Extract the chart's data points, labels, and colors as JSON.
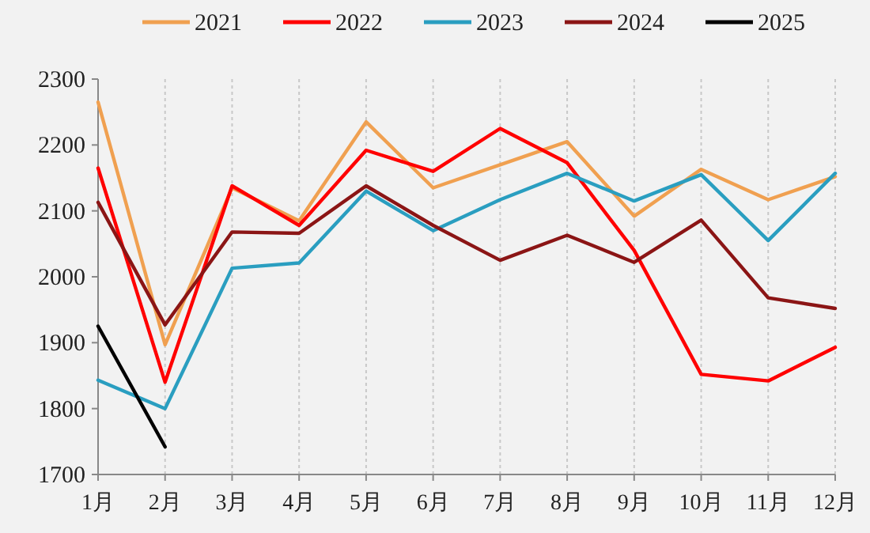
{
  "chart_data": {
    "type": "line",
    "categories": [
      "1月",
      "2月",
      "3月",
      "4月",
      "5月",
      "6月",
      "7月",
      "8月",
      "9月",
      "10月",
      "11月",
      "12月"
    ],
    "series": [
      {
        "name": "2021",
        "color": "#f0a050",
        "values": [
          2265,
          1897,
          2135,
          2085,
          2235,
          2135,
          2170,
          2205,
          2092,
          2163,
          2117,
          2152
        ]
      },
      {
        "name": "2022",
        "color": "#ff0000",
        "values": [
          2165,
          1840,
          2138,
          2078,
          2192,
          2160,
          2225,
          2173,
          2040,
          1852,
          1842,
          1893
        ]
      },
      {
        "name": "2023",
        "color": "#2a9ec0",
        "values": [
          1843,
          1800,
          2013,
          2021,
          2130,
          2070,
          2117,
          2157,
          2115,
          2155,
          2055,
          2157
        ]
      },
      {
        "name": "2024",
        "color": "#8b1515",
        "values": [
          2113,
          1927,
          2068,
          2066,
          2138,
          2078,
          2025,
          2063,
          2022,
          2086,
          1968,
          1952
        ]
      },
      {
        "name": "2025",
        "color": "#000000",
        "values": [
          1925,
          1742,
          null,
          null,
          null,
          null,
          null,
          null,
          null,
          null,
          null,
          null
        ]
      }
    ],
    "ylim": [
      1700,
      2300
    ],
    "yticks": [
      1700,
      1800,
      1900,
      2000,
      2100,
      2200,
      2300
    ],
    "grid": "x",
    "legend": "top",
    "marker": "none",
    "line_style": "solid"
  }
}
